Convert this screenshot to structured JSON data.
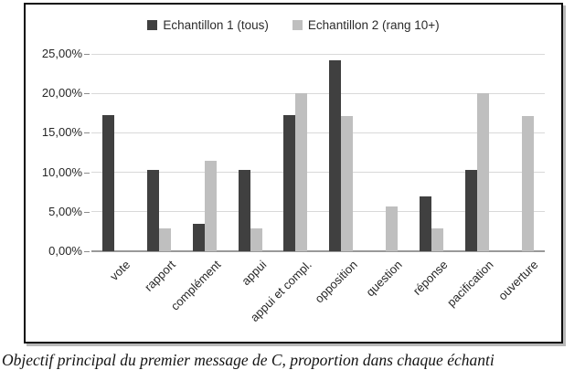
{
  "figure": {
    "caption": "Objectif principal du premier message de C, proportion dans chaque échanti"
  },
  "chart_data": {
    "type": "bar",
    "title": "",
    "xlabel": "",
    "ylabel": "",
    "categories": [
      "vote",
      "rapport",
      "complément",
      "appui",
      "appui et compl.",
      "opposition",
      "question",
      "réponse",
      "pacification",
      "ouverture"
    ],
    "series": [
      {
        "name": "Echantillon 1 (tous)",
        "color": "#404040",
        "values": [
          17.24,
          10.34,
          3.45,
          10.34,
          17.24,
          24.14,
          0,
          6.9,
          10.34,
          0
        ]
      },
      {
        "name": "Echantillon 2 (rang 10+)",
        "color": "#bfbfbf",
        "values": [
          0,
          2.86,
          11.43,
          2.86,
          20.0,
          17.14,
          5.71,
          2.86,
          20.0,
          17.14
        ]
      }
    ],
    "ylim": [
      0,
      25
    ],
    "ytick_values": [
      0,
      5,
      10,
      15,
      20,
      25
    ],
    "ytick_labels": [
      "0,00%",
      "5,00%",
      "10,00%",
      "15,00%",
      "20,00%",
      "25,00%"
    ],
    "grid": true,
    "legend_position": "top",
    "colors": {
      "gridline": "#d9d9d9",
      "axis_line": "#999999",
      "tick": "#8c8c8c",
      "text": "#262626",
      "frame_border": "#0d0d0d"
    }
  }
}
